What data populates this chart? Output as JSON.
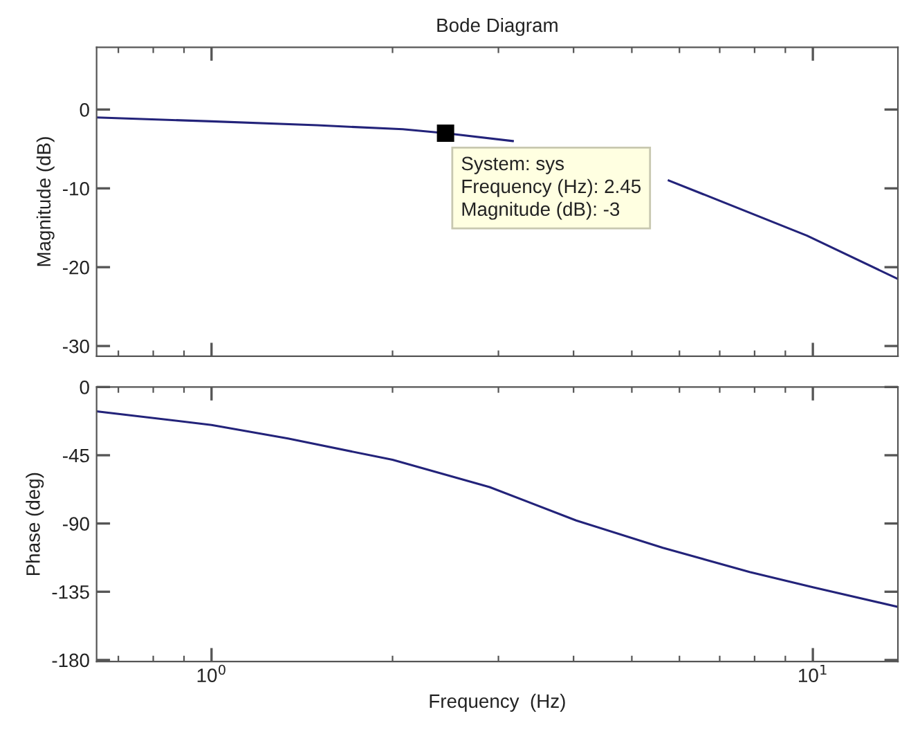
{
  "chart_data": [
    {
      "type": "line",
      "title": "Bode Diagram",
      "ylabel": "Magnitude (dB)",
      "log": "x",
      "tick_labels": "y",
      "grid": false,
      "xlim": [
        0.644,
        13.85
      ],
      "ylim": [
        -31.3,
        7.9
      ],
      "yticks": [
        -30,
        -20,
        -10,
        0
      ],
      "series": [
        {
          "color": "#23237a",
          "x": [
            0.644,
            1.0,
            1.5,
            2.08,
            2.45,
            3.17,
            4.3,
            5.76,
            9.78,
            13.85
          ],
          "values": [
            -1,
            -1.5,
            -2,
            -2.5,
            -3,
            -4,
            null,
            -9,
            -16,
            -21.5
          ]
        }
      ],
      "annotations": [
        {
          "text": "System: sys\nFrequency (Hz): 2.45\nMagnitude (dB): -3",
          "x": 2.45,
          "y": -3
        }
      ]
    },
    {
      "type": "line",
      "xlabel": "Frequency  (Hz)",
      "ylabel": "Phase (deg)",
      "log": "x",
      "grid": false,
      "xlim": [
        0.644,
        13.85
      ],
      "xticks": [
        {
          "value": 1,
          "label": "10$^{0}$"
        },
        {
          "value": 10,
          "label": "10$^{1}$"
        }
      ],
      "ylim": [
        -181,
        0
      ],
      "yticks": [
        -180,
        -135,
        -90,
        -45,
        0
      ],
      "series": [
        {
          "color": "#23237a",
          "x": [
            0.644,
            1.0,
            1.34,
            2.0,
            2.9,
            4.04,
            5.63,
            7.85,
            10,
            13.85
          ],
          "values": [
            -16,
            -25,
            -34,
            -48,
            -66,
            -88,
            -106,
            -122,
            -132,
            -145
          ]
        }
      ]
    }
  ]
}
